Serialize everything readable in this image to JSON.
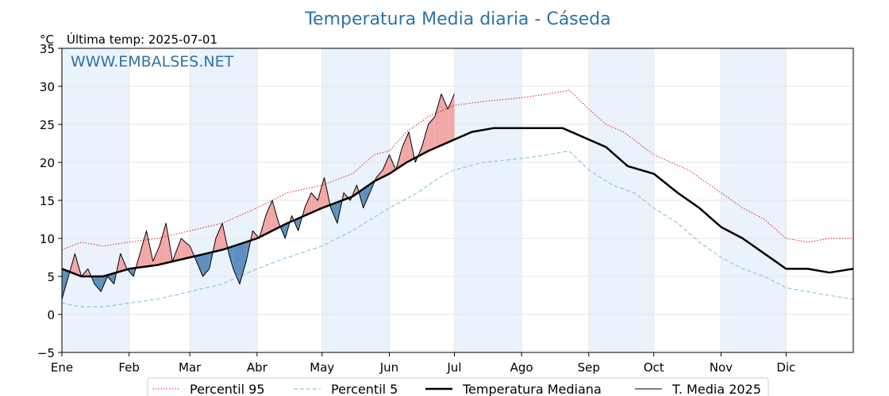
{
  "chart_data": {
    "type": "line",
    "title": "Temperatura Media diaria - Cáseda",
    "unit_label": "°C",
    "last_update_label": "Última temp: 2025-07-01",
    "watermark": "WWW.EMBALSES.NET",
    "ylim": [
      -5,
      35
    ],
    "yticks": [
      -5,
      0,
      5,
      10,
      15,
      20,
      25,
      30,
      35
    ],
    "ytick_labels": [
      "−5",
      "0",
      "5",
      "10",
      "15",
      "20",
      "25",
      "30",
      "35"
    ],
    "xlim": [
      1,
      366
    ],
    "month_labels": [
      "Ene",
      "Feb",
      "Mar",
      "Abr",
      "May",
      "Jun",
      "Jul",
      "Ago",
      "Sep",
      "Oct",
      "Nov",
      "Dic"
    ],
    "month_start_days": [
      1,
      32,
      60,
      91,
      121,
      152,
      182,
      213,
      244,
      274,
      305,
      335
    ],
    "shaded_months": [
      "Ene",
      "Mar",
      "May",
      "Jul",
      "Sep",
      "Nov"
    ],
    "grid": true,
    "legend": "bottom-center",
    "colors": {
      "p95": "#e0201e",
      "p5": "#8ec7de",
      "median": "#000000",
      "current": "#000000",
      "above_fill": "#f2a7a6",
      "below_fill": "#5f8fbd",
      "month_band": "#eaf2fb",
      "title": "#2f72a8"
    },
    "series": [
      {
        "name": "Percentil 95",
        "key": "p95",
        "style": "dotted",
        "points": [
          [
            1,
            8.5
          ],
          [
            10,
            9.5
          ],
          [
            20,
            9
          ],
          [
            32,
            9.5
          ],
          [
            45,
            10
          ],
          [
            60,
            11
          ],
          [
            75,
            12
          ],
          [
            91,
            14
          ],
          [
            105,
            16
          ],
          [
            121,
            17
          ],
          [
            135,
            18.5
          ],
          [
            145,
            21
          ],
          [
            152,
            21.5
          ],
          [
            160,
            24
          ],
          [
            170,
            26
          ],
          [
            182,
            27.5
          ],
          [
            195,
            28
          ],
          [
            213,
            28.5
          ],
          [
            225,
            29
          ],
          [
            235,
            29.5
          ],
          [
            244,
            27
          ],
          [
            252,
            25
          ],
          [
            260,
            24
          ],
          [
            274,
            21
          ],
          [
            290,
            19
          ],
          [
            305,
            16
          ],
          [
            315,
            14
          ],
          [
            325,
            12.5
          ],
          [
            335,
            10
          ],
          [
            345,
            9.5
          ],
          [
            355,
            10
          ],
          [
            366,
            10
          ]
        ]
      },
      {
        "name": "Percentil 5",
        "key": "p5",
        "style": "dashed",
        "points": [
          [
            1,
            1.5
          ],
          [
            10,
            1
          ],
          [
            20,
            1
          ],
          [
            32,
            1.5
          ],
          [
            45,
            2
          ],
          [
            60,
            3
          ],
          [
            75,
            4
          ],
          [
            91,
            6
          ],
          [
            105,
            7.5
          ],
          [
            121,
            9
          ],
          [
            135,
            11
          ],
          [
            152,
            14
          ],
          [
            165,
            16
          ],
          [
            175,
            18
          ],
          [
            182,
            19
          ],
          [
            195,
            20
          ],
          [
            213,
            20.5
          ],
          [
            225,
            21
          ],
          [
            235,
            21.5
          ],
          [
            244,
            19
          ],
          [
            255,
            17
          ],
          [
            265,
            16
          ],
          [
            274,
            14
          ],
          [
            285,
            12
          ],
          [
            295,
            9.5
          ],
          [
            305,
            7.5
          ],
          [
            315,
            6
          ],
          [
            325,
            5
          ],
          [
            335,
            3.5
          ],
          [
            345,
            3
          ],
          [
            355,
            2.5
          ],
          [
            366,
            2
          ]
        ]
      },
      {
        "name": "Temperatura Mediana",
        "key": "median",
        "style": "thick",
        "points": [
          [
            1,
            6
          ],
          [
            10,
            5
          ],
          [
            20,
            5
          ],
          [
            32,
            6
          ],
          [
            45,
            6.5
          ],
          [
            60,
            7.5
          ],
          [
            75,
            8.5
          ],
          [
            91,
            10
          ],
          [
            105,
            12
          ],
          [
            121,
            14
          ],
          [
            135,
            15.5
          ],
          [
            145,
            17.5
          ],
          [
            152,
            18.5
          ],
          [
            160,
            20
          ],
          [
            170,
            21.5
          ],
          [
            182,
            23
          ],
          [
            190,
            24
          ],
          [
            200,
            24.5
          ],
          [
            213,
            24.5
          ],
          [
            222,
            24.5
          ],
          [
            232,
            24.5
          ],
          [
            244,
            23
          ],
          [
            252,
            22
          ],
          [
            262,
            19.5
          ],
          [
            274,
            18.5
          ],
          [
            285,
            16
          ],
          [
            295,
            14
          ],
          [
            305,
            11.5
          ],
          [
            315,
            10
          ],
          [
            325,
            8
          ],
          [
            335,
            6
          ],
          [
            345,
            6
          ],
          [
            355,
            5.5
          ],
          [
            366,
            6
          ]
        ]
      },
      {
        "name": "T. Media 2025",
        "key": "current",
        "style": "thin",
        "points": [
          [
            1,
            2
          ],
          [
            4,
            5
          ],
          [
            7,
            8
          ],
          [
            10,
            5
          ],
          [
            13,
            6
          ],
          [
            16,
            4
          ],
          [
            19,
            3
          ],
          [
            22,
            5
          ],
          [
            25,
            4
          ],
          [
            28,
            8
          ],
          [
            31,
            6
          ],
          [
            34,
            5
          ],
          [
            37,
            8
          ],
          [
            40,
            11
          ],
          [
            43,
            7
          ],
          [
            46,
            9
          ],
          [
            49,
            12
          ],
          [
            52,
            7
          ],
          [
            56,
            10
          ],
          [
            60,
            9
          ],
          [
            63,
            7
          ],
          [
            66,
            5
          ],
          [
            69,
            6
          ],
          [
            72,
            10
          ],
          [
            75,
            12
          ],
          [
            78,
            8
          ],
          [
            80,
            6
          ],
          [
            83,
            4
          ],
          [
            86,
            7
          ],
          [
            89,
            11
          ],
          [
            92,
            10
          ],
          [
            95,
            13
          ],
          [
            98,
            15
          ],
          [
            101,
            12
          ],
          [
            104,
            10
          ],
          [
            107,
            13
          ],
          [
            110,
            11
          ],
          [
            113,
            14
          ],
          [
            116,
            16
          ],
          [
            119,
            15
          ],
          [
            122,
            18
          ],
          [
            125,
            14
          ],
          [
            128,
            12
          ],
          [
            131,
            16
          ],
          [
            134,
            15
          ],
          [
            137,
            17
          ],
          [
            140,
            14
          ],
          [
            143,
            16
          ],
          [
            146,
            18
          ],
          [
            149,
            19
          ],
          [
            152,
            21
          ],
          [
            155,
            19
          ],
          [
            158,
            22
          ],
          [
            161,
            24
          ],
          [
            164,
            20
          ],
          [
            167,
            22
          ],
          [
            170,
            25
          ],
          [
            173,
            26
          ],
          [
            176,
            29
          ],
          [
            179,
            27
          ],
          [
            182,
            29
          ]
        ]
      }
    ]
  }
}
